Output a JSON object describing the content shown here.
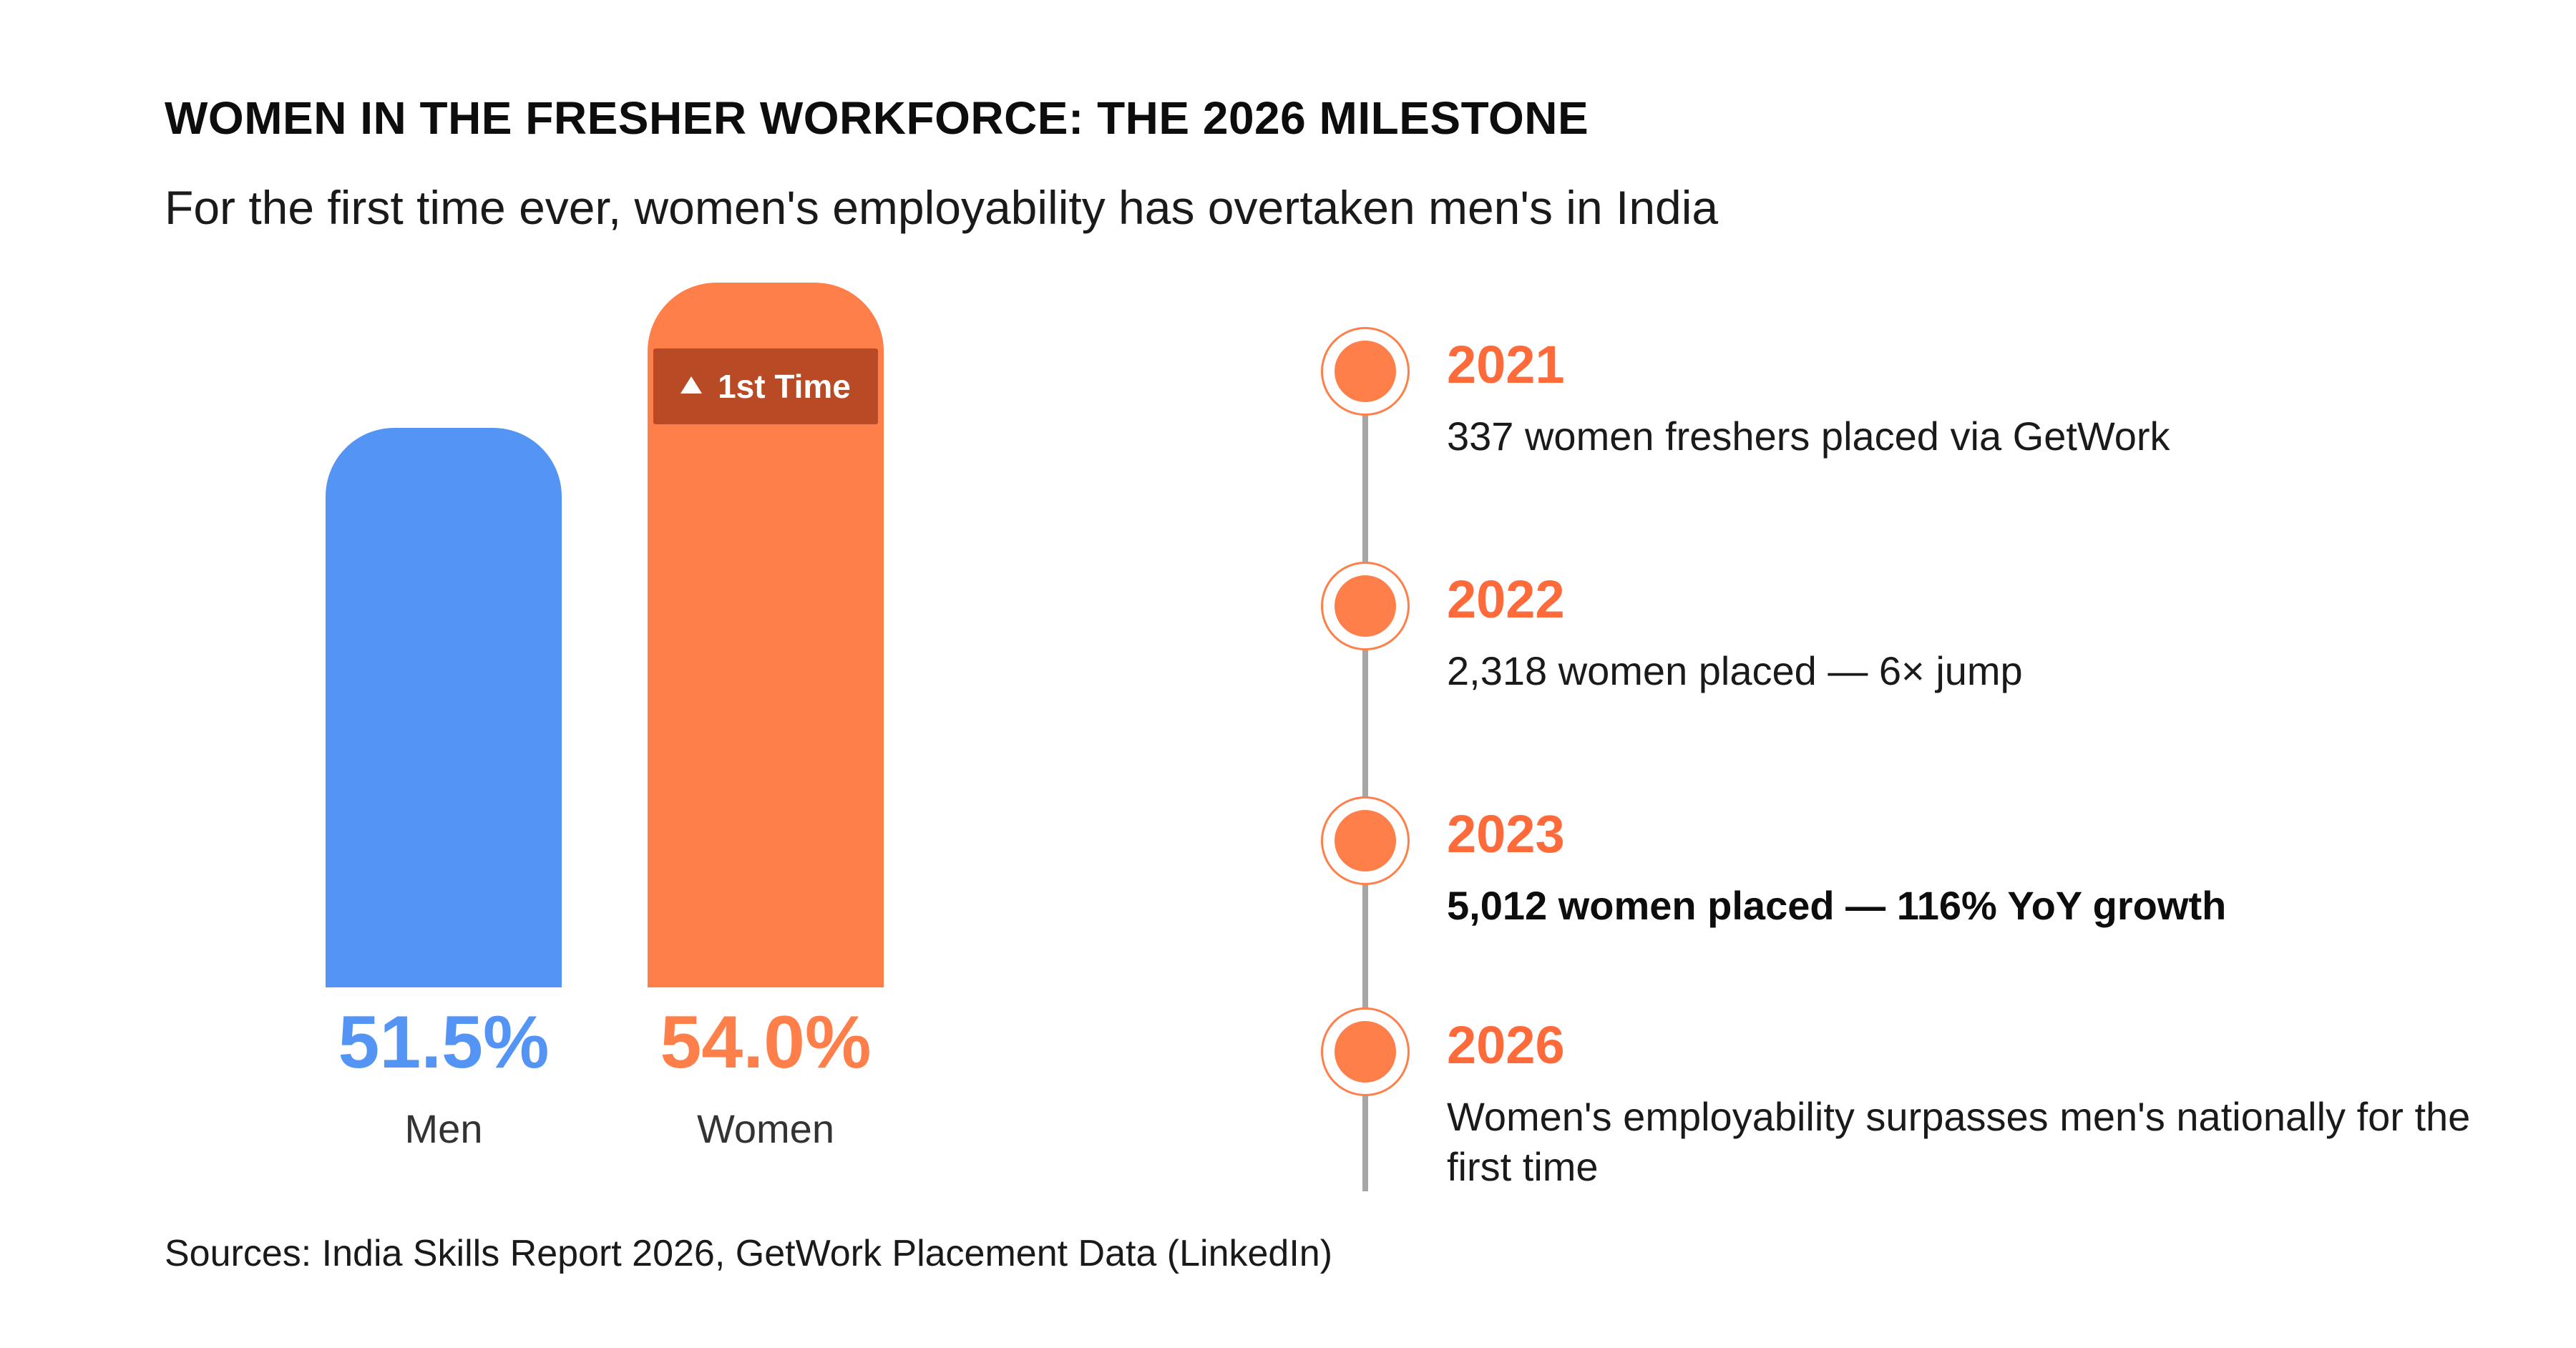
{
  "title": "WOMEN IN THE FRESHER WORKFORCE: THE 2026 MILESTONE",
  "subtitle": "For the first time ever, women's employability has overtaken men's in India",
  "source": "Sources: India Skills Report 2026, GetWork Placement Data (LinkedIn)",
  "badge": {
    "label": "1st Time",
    "icon": "triangle-up-icon"
  },
  "colors": {
    "men": "#5494f5",
    "women": "#ff7f4a",
    "badge": "#b84a26",
    "timeline_accent": "#ff6a3a",
    "timeline_line": "#a6a6a6"
  },
  "chart_data": {
    "type": "bar",
    "categories": [
      "Men",
      "Women"
    ],
    "values": [
      51.5,
      54.0
    ],
    "value_labels": [
      "51.5%",
      "54.0%"
    ],
    "title": "WOMEN IN THE FRESHER WORKFORCE: THE 2026 MILESTONE",
    "xlabel": "",
    "ylabel": "",
    "grid": false
  },
  "timeline": [
    {
      "year": "2021",
      "text": "337 women freshers placed via GetWork",
      "bold": false
    },
    {
      "year": "2022",
      "text": "2,318 women placed — 6× jump",
      "bold": false
    },
    {
      "year": "2023",
      "text": "5,012 women placed — 116% YoY growth",
      "bold": true
    },
    {
      "year": "2026",
      "text": "Women's employability surpasses men's nationally for the first time",
      "bold": false
    }
  ]
}
